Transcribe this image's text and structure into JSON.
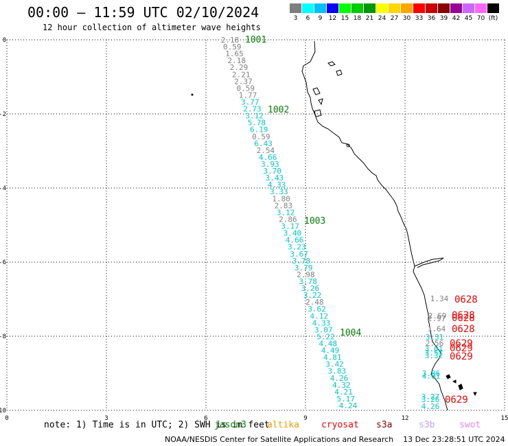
{
  "header": {
    "title": "00:00 – 11:59 UTC 02/10/2024",
    "subtitle": "12 hour collection of altimeter wave heights"
  },
  "colorbar": {
    "colors": [
      "#7f7f7f",
      "#00ffff",
      "#00bfff",
      "#0000ff",
      "#00ff00",
      "#00cc00",
      "#009900",
      "#ffff00",
      "#ffd700",
      "#ffa500",
      "#ff0000",
      "#cc0000",
      "#8b0000",
      "#990099",
      "#cc66ff",
      "#ff66ff",
      "#000000"
    ],
    "labels": [
      "3",
      "6",
      "9",
      "12",
      "15",
      "18",
      "21",
      "24",
      "27",
      "30",
      "33",
      "36",
      "39",
      "42",
      "45",
      "70",
      "(ft)"
    ]
  },
  "axes": {
    "x_ticks": [
      "0",
      "3",
      "6",
      "9",
      "12",
      "15"
    ],
    "y_ticks": [
      "0",
      "-2",
      "-4",
      "-6",
      "-8",
      "-10"
    ]
  },
  "tracks": {
    "track_labels": [
      {
        "text": "1001",
        "color": "#008000"
      },
      {
        "text": "1002",
        "color": "#008000"
      },
      {
        "text": "1003",
        "color": "#008000"
      },
      {
        "text": "1004",
        "color": "#008000"
      }
    ],
    "main_track": [
      {
        "v": "2.18",
        "c": "gray"
      },
      {
        "v": "0.59",
        "c": "gray"
      },
      {
        "v": "1.65",
        "c": "gray"
      },
      {
        "v": "2.18",
        "c": "gray"
      },
      {
        "v": "2.29",
        "c": "gray"
      },
      {
        "v": "2.21",
        "c": "gray"
      },
      {
        "v": "2.37",
        "c": "gray"
      },
      {
        "v": "0.59",
        "c": "gray"
      },
      {
        "v": "1.77",
        "c": "gray"
      },
      {
        "v": "3.77",
        "c": "cyan"
      },
      {
        "v": "2.73",
        "c": "cyan"
      },
      {
        "v": "3.12",
        "c": "cyan"
      },
      {
        "v": "5.78",
        "c": "cyan"
      },
      {
        "v": "6.19",
        "c": "cyan"
      },
      {
        "v": "0.59",
        "c": "gray"
      },
      {
        "v": "6.43",
        "c": "cyan"
      },
      {
        "v": "2.54",
        "c": "gray"
      },
      {
        "v": "4.66",
        "c": "cyan"
      },
      {
        "v": "3.93",
        "c": "cyan"
      },
      {
        "v": "3.70",
        "c": "cyan"
      },
      {
        "v": "3.43",
        "c": "cyan"
      },
      {
        "v": "4.33",
        "c": "cyan"
      },
      {
        "v": "3.33",
        "c": "cyan"
      },
      {
        "v": "1.80",
        "c": "gray"
      },
      {
        "v": "2.83",
        "c": "gray"
      },
      {
        "v": "3.12",
        "c": "cyan"
      },
      {
        "v": "2.86",
        "c": "gray"
      },
      {
        "v": "3.17",
        "c": "cyan"
      },
      {
        "v": "3.40",
        "c": "cyan"
      },
      {
        "v": "4.66",
        "c": "cyan"
      },
      {
        "v": "3.23",
        "c": "cyan"
      },
      {
        "v": "3.67",
        "c": "cyan"
      },
      {
        "v": "3.78",
        "c": "cyan"
      },
      {
        "v": "3.79",
        "c": "cyan"
      },
      {
        "v": "2.98",
        "c": "gray"
      },
      {
        "v": "3.78",
        "c": "cyan"
      },
      {
        "v": "3.26",
        "c": "cyan"
      },
      {
        "v": "3.22",
        "c": "cyan"
      },
      {
        "v": "2.48",
        "c": "gray"
      },
      {
        "v": "3.62",
        "c": "cyan"
      },
      {
        "v": "4.12",
        "c": "cyan"
      },
      {
        "v": "4.33",
        "c": "cyan"
      },
      {
        "v": "3.07",
        "c": "cyan"
      },
      {
        "v": "5.22",
        "c": "cyan"
      },
      {
        "v": "4.48",
        "c": "cyan"
      },
      {
        "v": "4.49",
        "c": "cyan"
      },
      {
        "v": "4.81",
        "c": "cyan"
      },
      {
        "v": "3.42",
        "c": "cyan"
      },
      {
        "v": "3.83",
        "c": "cyan"
      },
      {
        "v": "4.26",
        "c": "cyan"
      },
      {
        "v": "4.32",
        "c": "cyan"
      },
      {
        "v": "4.21",
        "c": "cyan"
      },
      {
        "v": "5.17",
        "c": "cyan"
      },
      {
        "v": "4.24",
        "c": "cyan"
      }
    ],
    "coast_track": [
      {
        "v": "1.34",
        "c": "gray"
      },
      {
        "v": "2.69",
        "c": "gray"
      },
      {
        "v": "2.97",
        "c": "gray"
      },
      {
        "v": "1.64",
        "c": "gray"
      },
      {
        "v": "3.31",
        "c": "cyan"
      },
      {
        "v": "2.56",
        "c": "gray"
      },
      {
        "v": "3.01",
        "c": "cyan"
      },
      {
        "v": "3.57",
        "c": "cyan"
      },
      {
        "v": "3.32",
        "c": "cyan"
      },
      {
        "v": "3.86",
        "c": "cyan"
      },
      {
        "v": "4.01",
        "c": "cyan"
      },
      {
        "v": "3.27",
        "c": "cyan"
      },
      {
        "v": "3.26",
        "c": "cyan"
      },
      {
        "v": "4.26",
        "c": "cyan"
      }
    ],
    "coast_track_times": [
      {
        "text": "0628",
        "color": "#ff0000"
      },
      {
        "text": "0628",
        "color": "#ff0000"
      },
      {
        "text": "0628",
        "color": "#ff0000"
      },
      {
        "text": "0628",
        "color": "#ff0000"
      },
      {
        "text": "0629",
        "color": "#ff0000"
      },
      {
        "text": "0629",
        "color": "#ff0000"
      },
      {
        "text": "0629",
        "color": "#ff0000"
      },
      {
        "text": "0629",
        "color": "#ff0000"
      }
    ]
  },
  "footer": {
    "note": "note: 1) Time is in UTC; 2) SWH is in feet",
    "satellites": [
      {
        "name": "jason3",
        "color": "#008000"
      },
      {
        "name": "altika",
        "color": "#ff9900"
      },
      {
        "name": "cryosat",
        "color": "#ff0000"
      },
      {
        "name": "s3a",
        "color": "#8b0000"
      },
      {
        "name": "s3b",
        "color": "#c8a0ff"
      },
      {
        "name": "swot",
        "color": "#ff80ff"
      }
    ],
    "credit": "NOAA/NESDIS Center for Satellite Applications and Research    13 Dec 23:28:51 UTC 2024"
  }
}
